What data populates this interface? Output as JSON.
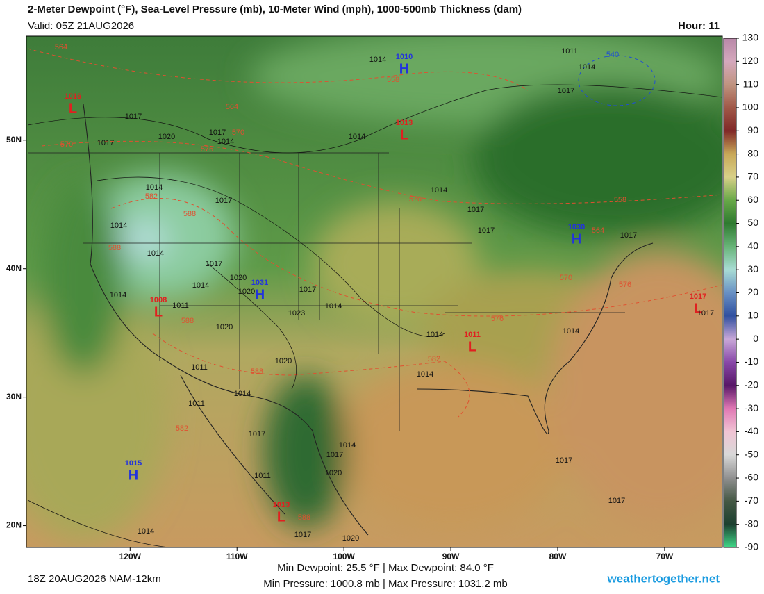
{
  "title": "2-Meter Dewpoint (°F), Sea-Level Pressure (mb), 10-Meter Wind (mph), 1000-500mb Thickness (dam)",
  "valid": "Valid: 05Z 21AUG2026",
  "hour": "Hour: 11",
  "run": "18Z 20AUG2026 NAM-12km",
  "stats": [
    "Min Dewpoint:  25.5 °F | Max Dewpoint:  84.0 °F",
    "Min Pressure: 1000.8 mb | Max Pressure: 1031.2 mb"
  ],
  "site": "weathertogether.net",
  "map": {
    "xlim": [
      -129.7,
      -64.6
    ],
    "ylim": [
      18.3,
      58.1
    ],
    "xticks": [
      {
        "value": -120,
        "label": "120W"
      },
      {
        "value": -110,
        "label": "110W"
      },
      {
        "value": -100,
        "label": "100W"
      },
      {
        "value": -90,
        "label": "90W"
      },
      {
        "value": -80,
        "label": "80W"
      },
      {
        "value": -70,
        "label": "70W"
      }
    ],
    "yticks": [
      {
        "value": 50,
        "label": "50N"
      },
      {
        "value": 40,
        "label": "40N"
      },
      {
        "value": 30,
        "label": "30N"
      },
      {
        "value": 20,
        "label": "20N"
      }
    ],
    "high_color": "#2233dd",
    "low_color": "#e02020",
    "centers": [
      {
        "letter": "L",
        "value": 1016
      },
      {
        "letter": "H",
        "value": 1010
      },
      {
        "letter": "L",
        "value": 1013
      },
      {
        "letter": "H",
        "value": 1030
      },
      {
        "letter": "H",
        "value": 1031
      },
      {
        "letter": "L",
        "value": 1008
      },
      {
        "letter": "L",
        "value": 1011
      },
      {
        "letter": "L",
        "value": 1017
      },
      {
        "letter": "H",
        "value": 1015
      },
      {
        "letter": "L",
        "value": 1013
      }
    ],
    "isobar_color": "#111111",
    "isobar_labels": [
      1014,
      1011,
      1014,
      1017,
      1017,
      1017,
      1020,
      1017,
      1014,
      1014,
      1014,
      1017,
      1014,
      1014,
      1017,
      1014,
      1020,
      1020,
      1017,
      1014,
      1023,
      1014,
      1011,
      1020,
      1020,
      1011,
      1014,
      1014,
      1017,
      1017,
      1017,
      1014,
      1014,
      1014,
      1011,
      1017,
      1014,
      1017,
      1020,
      1011,
      1017,
      1017,
      1017,
      1014,
      1017,
      1020
    ],
    "thickness_labels": [
      {
        "color": "#e05030",
        "values": [
          564,
          558,
          564,
          570,
          576,
          570,
          582,
          588,
          588,
          570,
          558,
          564,
          570,
          576,
          576,
          582,
          588,
          588,
          582,
          588
        ]
      },
      {
        "color": "#2050d0",
        "values": [
          540
        ]
      }
    ]
  },
  "colorbar": {
    "lim": [
      -90,
      130
    ],
    "ticks": [
      130,
      120,
      110,
      100,
      90,
      80,
      70,
      60,
      50,
      40,
      30,
      20,
      10,
      0,
      -10,
      -20,
      -30,
      -40,
      -50,
      -60,
      -70,
      -80,
      -90
    ],
    "colors": [
      "#b888a8",
      "#d4a8bc",
      "#c09480",
      "#a05848",
      "#802828",
      "#c8a858",
      "#d8d088",
      "#68a848",
      "#2e7a30",
      "#68b478",
      "#a8dcd4",
      "#6890c4",
      "#3050a0",
      "#c8a8d8",
      "#8848a8",
      "#581868",
      "#e078b4",
      "#f0c4d4",
      "#d8d8d8",
      "#909090",
      "#445844",
      "#1c4030",
      "#40d888"
    ]
  }
}
